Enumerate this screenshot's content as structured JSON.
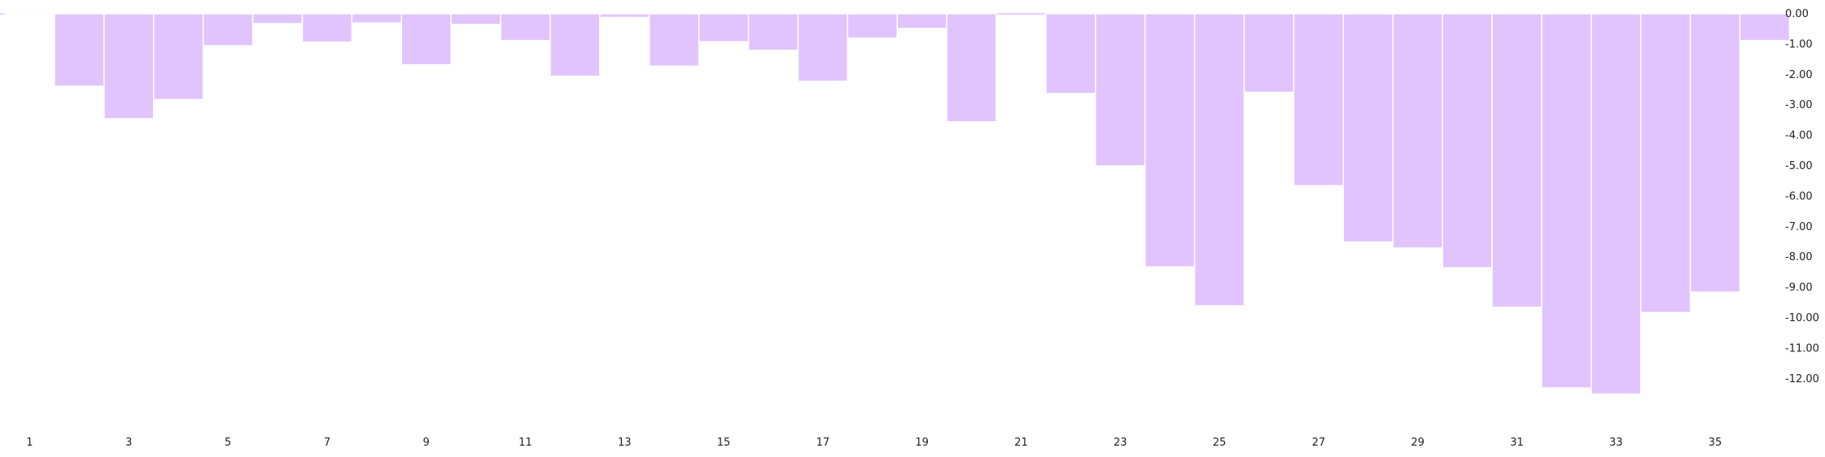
{
  "chart_data": {
    "type": "bar",
    "title": "",
    "xlabel": "",
    "ylabel": "",
    "categories": [
      1,
      2,
      3,
      4,
      5,
      6,
      7,
      8,
      9,
      10,
      11,
      12,
      13,
      14,
      15,
      16,
      17,
      18,
      19,
      20,
      21,
      22,
      23,
      24,
      25,
      26,
      27,
      28,
      29,
      30,
      31,
      32,
      33,
      34,
      35,
      36
    ],
    "x_tick_labels": [
      "1",
      "3",
      "5",
      "7",
      "9",
      "11",
      "13",
      "15",
      "17",
      "19",
      "21",
      "23",
      "25",
      "27",
      "29",
      "31",
      "33",
      "35"
    ],
    "y_tick_labels": [
      "0.00",
      "-1.00",
      "-2.00",
      "-3.00",
      "-4.00",
      "-5.00",
      "-6.00",
      "-7.00",
      "-8.00",
      "-9.00",
      "-10.00",
      "-11.00",
      "-12.00"
    ],
    "series": [
      {
        "values": [
          -0.02,
          -2.38,
          -3.45,
          -2.82,
          -1.05,
          -0.32,
          -0.93,
          -0.3,
          -1.68,
          -0.35,
          -0.88,
          -2.05,
          -0.12,
          -1.72,
          -0.92,
          -1.2,
          -2.22,
          -0.8,
          -0.48,
          -3.55,
          0,
          -2.62,
          -5.0,
          -8.32,
          -9.6,
          -2.58,
          -5.65,
          -7.5,
          -7.7,
          -8.35,
          -9.65,
          -12.3,
          -12.5,
          -9.82,
          -9.15,
          -0.88
        ]
      }
    ],
    "ylim": [
      -12.5,
      0
    ],
    "bar_color": "#e1c4fd",
    "bar_stroke": "#ffffff",
    "axis_position": "right",
    "grid": false,
    "legend": false
  }
}
